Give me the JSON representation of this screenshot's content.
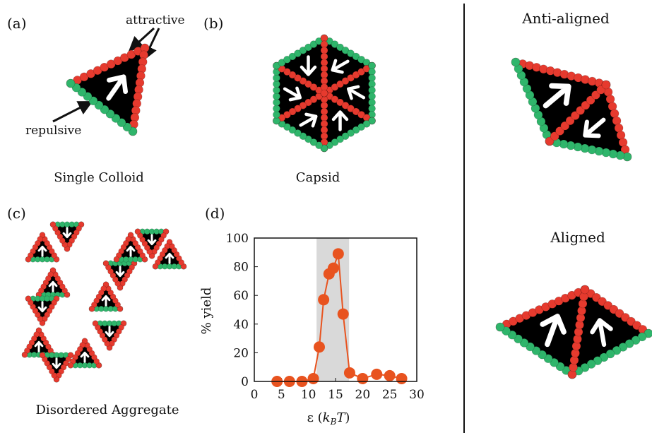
{
  "panels": {
    "a": {
      "label": "(a)",
      "caption": "Single Colloid",
      "attractive": "attractive",
      "repulsive": "repulsive"
    },
    "b": {
      "label": "(b)",
      "caption": "Capsid"
    },
    "c": {
      "label": "(c)",
      "caption": "Disordered Aggregate"
    },
    "d": {
      "label": "(d)"
    },
    "right": {
      "top_title": "Anti-aligned",
      "bottom_title": "Aligned"
    }
  },
  "colors": {
    "attractive": "#e63a2e",
    "repulsive": "#2fb56b",
    "body": "#000000",
    "arrow": "#ffffff",
    "plot_line": "#e8531f",
    "shade": "#d9d9d9"
  },
  "chart_data": {
    "type": "line",
    "xlabel": "ε (k_BT)",
    "ylabel": "% yield",
    "xlim": [
      0,
      30
    ],
    "ylim": [
      0,
      100
    ],
    "xticks": [
      0,
      5,
      10,
      15,
      20,
      25,
      30
    ],
    "yticks": [
      0,
      20,
      40,
      60,
      80,
      100
    ],
    "shaded_region": [
      11.5,
      17.5
    ],
    "x": [
      4.2,
      6.5,
      8.8,
      10.9,
      12.0,
      12.8,
      13.8,
      14.6,
      15.5,
      16.4,
      17.6,
      20.0,
      22.6,
      25.0,
      27.2
    ],
    "y": [
      0,
      0,
      0,
      2,
      24,
      57,
      75,
      79,
      89,
      47,
      6,
      2,
      5,
      4,
      2
    ]
  }
}
